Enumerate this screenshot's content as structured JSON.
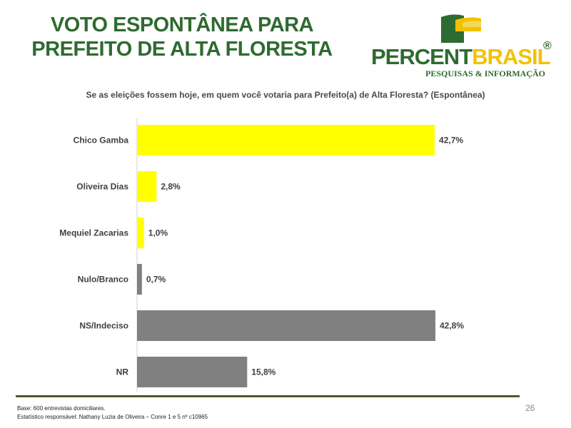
{
  "title": {
    "line1": "VOTO ESPONTÂNEA PARA",
    "line2": "PREFEITO DE ALTA FLORESTA"
  },
  "logo": {
    "word_part1": "PERCENT",
    "word_part2": "BRASIL",
    "registered": "®",
    "tagline": "PESQUISAS & INFORMAÇÃO",
    "colors": {
      "green": "#2e6b30",
      "yellow": "#f2c200"
    }
  },
  "question": "Se as eleições fossem hoje, em quem você votaria para Prefeito(a) de Alta Floresta? (Espontânea)",
  "chart_data": {
    "type": "bar",
    "orientation": "horizontal",
    "categories": [
      "Chico Gamba",
      "Oliveira Dias",
      "Mequiel Zacarias",
      "Nulo/Branco",
      "NS/Indeciso",
      "NR"
    ],
    "values": [
      42.7,
      2.8,
      1.0,
      0.7,
      42.8,
      15.8
    ],
    "value_labels": [
      "42,7%",
      "2,8%",
      "1,0%",
      "0,7%",
      "42,8%",
      "15,8%"
    ],
    "bar_colors": [
      "#ffff00",
      "#ffff00",
      "#ffff00",
      "#808080",
      "#808080",
      "#808080"
    ],
    "xlim": [
      0,
      42.8
    ],
    "grid": false
  },
  "footer": {
    "base": "Base: 600 entrevistas domiciliares.",
    "statistician": "Estatístico responsável: Nathany Luzia de Oliveira – Conre 1 e 5 nº c10965",
    "page_number": "26"
  }
}
